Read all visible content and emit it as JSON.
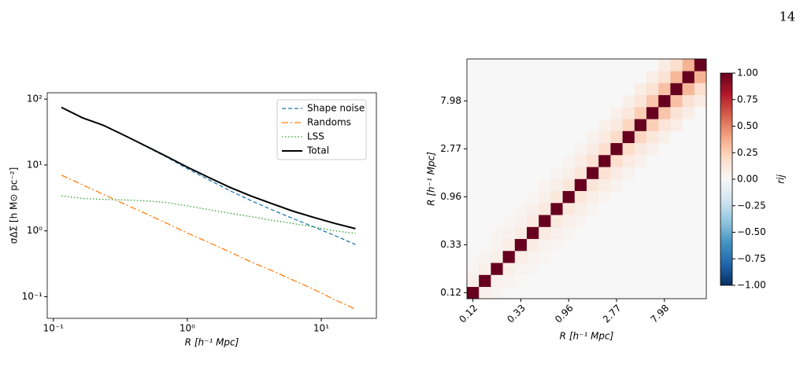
{
  "page_number": "14",
  "chart_data": [
    {
      "type": "line",
      "xlabel": "R [h⁻¹ Mpc]",
      "ylabel": "σΔΣ [h M⊙ pc⁻²]",
      "xscale": "log",
      "yscale": "log",
      "xlim": [
        0.09,
        25.8
      ],
      "ylim": [
        0.047,
        125
      ],
      "xticks": [
        {
          "value": 0.1,
          "label": "10⁻¹"
        },
        {
          "value": 1,
          "label": "10⁰"
        },
        {
          "value": 10,
          "label": "10¹"
        }
      ],
      "yticks": [
        {
          "value": 0.1,
          "label": "10⁻¹"
        },
        {
          "value": 1,
          "label": "10⁰"
        },
        {
          "value": 10,
          "label": "10¹"
        },
        {
          "value": 100,
          "label": "10²"
        }
      ],
      "legend": "upper right",
      "x": [
        0.115,
        0.165,
        0.237,
        0.34,
        0.488,
        0.7,
        1.0,
        1.44,
        2.07,
        2.97,
        4.26,
        6.11,
        8.77,
        12.6,
        18.0
      ],
      "series": [
        {
          "name": "Shape noise",
          "color": "#1f77b4",
          "linestyle": "dashed",
          "values": [
            75,
            52,
            40,
            28,
            19.3,
            13.2,
            8.8,
            6.0,
            4.1,
            2.9,
            2.1,
            1.55,
            1.15,
            0.85,
            0.62
          ]
        },
        {
          "name": "Randoms",
          "color": "#ff7f0e",
          "linestyle": "dashdot",
          "values": [
            7,
            5.0,
            3.57,
            2.55,
            1.83,
            1.31,
            0.93,
            0.67,
            0.48,
            0.34,
            0.25,
            0.18,
            0.13,
            0.09,
            0.065
          ]
        },
        {
          "name": "LSS",
          "color": "#2ca02c",
          "linestyle": "dotted",
          "values": [
            3.4,
            3.1,
            3.0,
            2.95,
            2.85,
            2.7,
            2.4,
            2.1,
            1.85,
            1.65,
            1.45,
            1.3,
            1.15,
            1.0,
            0.92
          ]
        },
        {
          "name": "Total",
          "color": "#000000",
          "linestyle": "solid",
          "values": [
            75,
            52,
            40,
            28,
            19.5,
            13.5,
            9.3,
            6.5,
            4.6,
            3.4,
            2.6,
            2.0,
            1.6,
            1.3,
            1.08
          ]
        }
      ]
    },
    {
      "type": "heatmap",
      "xlabel": "R [h⁻¹ Mpc]",
      "ylabel": "R [h⁻¹ Mpc]",
      "colorbar_label": "rij",
      "categories": [
        "0.12",
        null,
        null,
        null,
        "0.33",
        null,
        null,
        null,
        "0.96",
        null,
        null,
        null,
        "2.77",
        null,
        null,
        null,
        "7.98",
        null,
        null,
        null
      ],
      "zlim": [
        -1,
        1
      ],
      "zticks": [
        {
          "value": -1,
          "label": "−1.00"
        },
        {
          "value": -0.75,
          "label": "−0.75"
        },
        {
          "value": -0.5,
          "label": "−0.50"
        },
        {
          "value": -0.25,
          "label": "−0.25"
        },
        {
          "value": 0,
          "label": "0.00"
        },
        {
          "value": 0.25,
          "label": "0.25"
        },
        {
          "value": 0.5,
          "label": "0.50"
        },
        {
          "value": 0.75,
          "label": "0.75"
        },
        {
          "value": 1,
          "label": "1.00"
        }
      ],
      "colorscale": [
        "#053061",
        "#2166ac",
        "#4393c3",
        "#92c5de",
        "#d1e5f0",
        "#f7f7f7",
        "#fddbc7",
        "#f4a582",
        "#d6604d",
        "#b2182b",
        "#67001f"
      ],
      "values": [
        [
          1,
          0.05,
          0.02,
          0.01,
          0,
          0,
          0,
          0,
          0,
          0,
          0,
          0,
          0,
          0,
          0,
          0,
          0,
          0,
          0,
          0
        ],
        [
          0.05,
          1,
          0.05,
          0.03,
          0.01,
          0,
          0,
          0,
          0,
          0,
          0,
          0,
          0,
          0,
          0,
          0,
          0,
          0,
          0,
          0
        ],
        [
          0.02,
          0.05,
          1,
          0.06,
          0.03,
          0.02,
          0,
          0,
          0,
          0,
          0,
          0,
          0,
          0,
          0,
          0,
          0,
          0,
          0,
          0
        ],
        [
          0.01,
          0.03,
          0.06,
          1,
          0.07,
          0.04,
          0.02,
          0,
          0,
          0,
          0,
          0,
          0,
          0,
          0,
          0,
          0,
          0,
          0,
          0
        ],
        [
          0,
          0.01,
          0.03,
          0.07,
          1,
          0.08,
          0.04,
          0.02,
          0,
          0,
          0,
          0,
          0,
          0,
          0,
          0,
          0,
          0,
          0,
          0
        ],
        [
          0,
          0,
          0.02,
          0.04,
          0.08,
          1,
          0.09,
          0.05,
          0.02,
          0,
          0,
          0,
          0,
          0,
          0,
          0,
          0,
          0,
          0,
          0
        ],
        [
          0,
          0,
          0,
          0.02,
          0.04,
          0.09,
          1,
          0.1,
          0.05,
          0.03,
          0,
          0,
          0,
          0,
          0,
          0,
          0,
          0,
          0,
          0
        ],
        [
          0,
          0,
          0,
          0,
          0.02,
          0.05,
          0.1,
          1,
          0.11,
          0.06,
          0.03,
          0,
          0,
          0,
          0,
          0,
          0,
          0,
          0,
          0
        ],
        [
          0,
          0,
          0,
          0,
          0,
          0.02,
          0.05,
          0.11,
          1,
          0.12,
          0.06,
          0.03,
          0,
          0,
          0,
          0,
          0,
          0,
          0,
          0
        ],
        [
          0,
          0,
          0,
          0,
          0,
          0,
          0.03,
          0.06,
          0.12,
          1,
          0.13,
          0.07,
          0.04,
          0,
          0,
          0,
          0,
          0,
          0,
          0
        ],
        [
          0,
          0,
          0,
          0,
          0,
          0,
          0,
          0.03,
          0.06,
          0.13,
          1,
          0.15,
          0.08,
          0.04,
          0,
          0,
          0,
          0,
          0,
          0
        ],
        [
          0,
          0,
          0,
          0,
          0,
          0,
          0,
          0,
          0.03,
          0.07,
          0.15,
          1,
          0.17,
          0.09,
          0.05,
          0,
          0,
          0,
          0,
          0
        ],
        [
          0,
          0,
          0,
          0,
          0,
          0,
          0,
          0,
          0,
          0.04,
          0.08,
          0.17,
          1,
          0.19,
          0.1,
          0.05,
          0,
          0,
          0,
          0
        ],
        [
          0,
          0,
          0,
          0,
          0,
          0,
          0,
          0,
          0,
          0,
          0.04,
          0.09,
          0.19,
          1,
          0.22,
          0.11,
          0.06,
          0,
          0,
          0
        ],
        [
          0,
          0,
          0,
          0,
          0,
          0,
          0,
          0,
          0,
          0,
          0,
          0.05,
          0.1,
          0.22,
          1,
          0.25,
          0.13,
          0.07,
          0,
          0
        ],
        [
          0,
          0,
          0,
          0,
          0,
          0,
          0,
          0,
          0,
          0,
          0,
          0,
          0.05,
          0.11,
          0.25,
          1,
          0.28,
          0.14,
          0.07,
          0
        ],
        [
          0,
          0,
          0,
          0,
          0,
          0,
          0,
          0,
          0,
          0,
          0,
          0,
          0,
          0.06,
          0.13,
          0.28,
          1,
          0.3,
          0.15,
          0.08
        ],
        [
          0,
          0,
          0,
          0,
          0,
          0,
          0,
          0,
          0,
          0,
          0,
          0,
          0,
          0,
          0.07,
          0.14,
          0.3,
          1,
          0.33,
          0.17
        ],
        [
          0,
          0,
          0,
          0,
          0,
          0,
          0,
          0,
          0,
          0,
          0,
          0,
          0,
          0,
          0,
          0.07,
          0.15,
          0.33,
          1,
          0.35
        ],
        [
          0,
          0,
          0,
          0,
          0,
          0,
          0,
          0,
          0,
          0,
          0,
          0,
          0,
          0,
          0,
          0,
          0.08,
          0.17,
          0.35,
          1
        ]
      ]
    }
  ]
}
